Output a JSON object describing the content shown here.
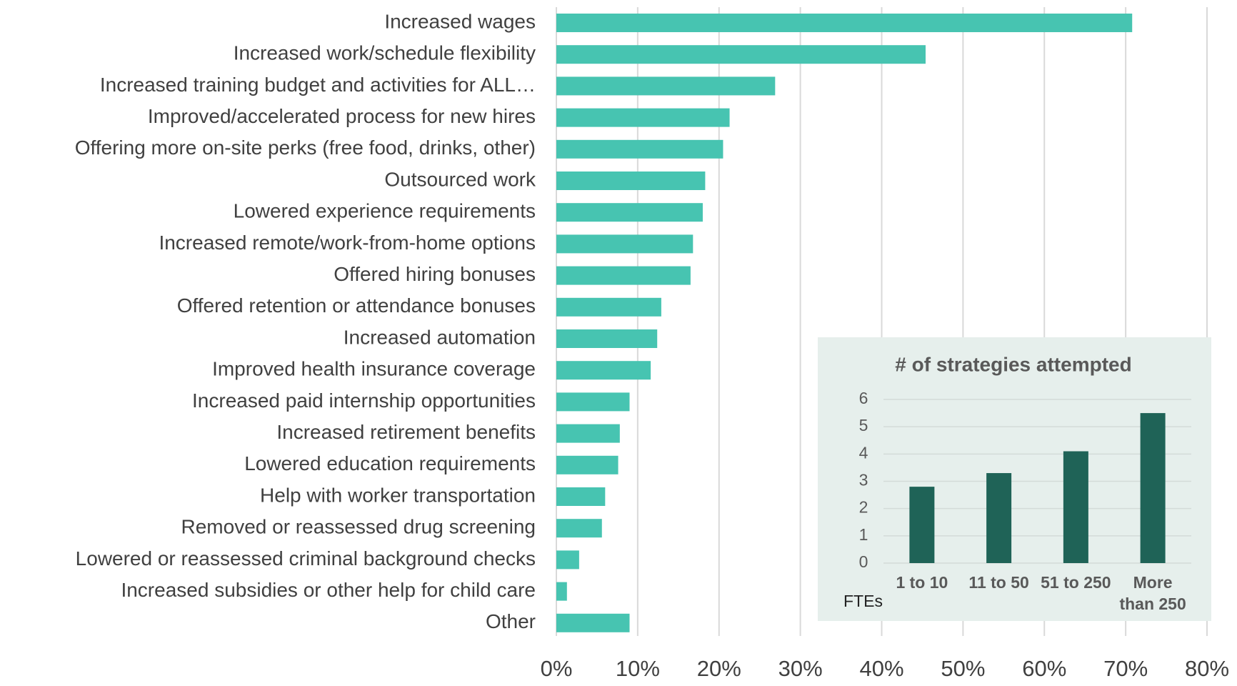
{
  "chart_data": [
    {
      "type": "hbar",
      "categories": [
        "Increased wages",
        "Increased work/schedule flexibility",
        "Increased training budget and activities for ALL…",
        "Improved/accelerated process for new hires",
        "Offering more on-site perks (free food, drinks, other)",
        "Outsourced work",
        "Lowered experience requirements",
        "Increased remote/work-from-home options",
        "Offered hiring bonuses",
        "Offered retention or attendance bonuses",
        "Increased automation",
        "Improved health insurance coverage",
        "Increased paid internship opportunities",
        "Increased retirement benefits",
        "Lowered education requirements",
        "Help with worker transportation",
        "Removed or reassessed drug screening",
        "Lowered or reassessed criminal background checks",
        "Increased subsidies or other help for child care",
        "Other"
      ],
      "values": [
        70.8,
        45.4,
        26.9,
        21.3,
        20.5,
        18.3,
        18.0,
        16.8,
        16.5,
        12.9,
        12.4,
        11.6,
        9.0,
        7.8,
        7.6,
        6.0,
        5.6,
        2.8,
        1.3,
        9.0
      ],
      "color": "#47c4b1",
      "xlim": [
        0,
        80
      ],
      "xticks": [
        {
          "value": 0,
          "label": "0%"
        },
        {
          "value": 10,
          "label": "10%"
        },
        {
          "value": 20,
          "label": "20%"
        },
        {
          "value": 30,
          "label": "30%"
        },
        {
          "value": 40,
          "label": "40%"
        },
        {
          "value": 50,
          "label": "50%"
        },
        {
          "value": 60,
          "label": "60%"
        },
        {
          "value": 70,
          "label": "70%"
        },
        {
          "value": 80,
          "label": "80%"
        }
      ],
      "grid": true
    },
    {
      "type": "bar",
      "title": "# of strategies attempted",
      "categories": [
        "1 to 10",
        "11 to 50",
        "51 to 250",
        "More than 250"
      ],
      "values": [
        2.8,
        3.3,
        4.1,
        5.5
      ],
      "color": "#1f6357",
      "annotation": "FTEs",
      "ylim": [
        0,
        6
      ],
      "yticks": [
        0,
        1,
        2,
        3,
        4,
        5,
        6
      ],
      "grid": true
    }
  ]
}
